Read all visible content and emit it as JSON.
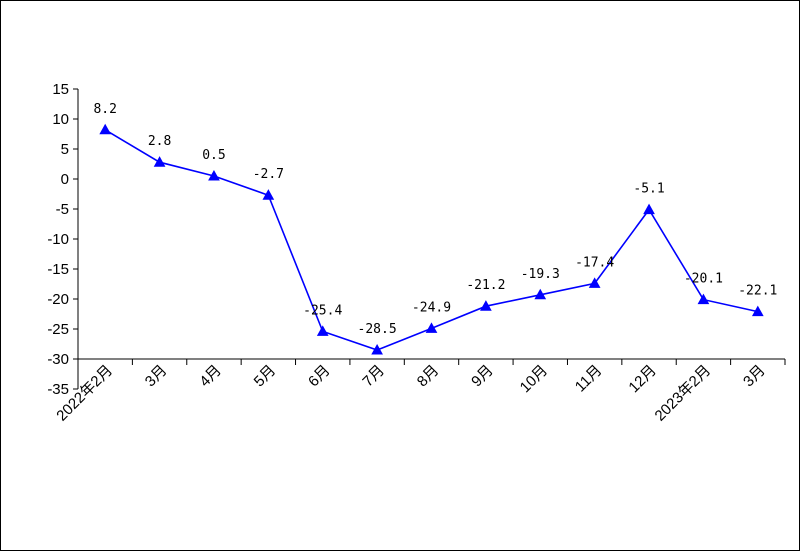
{
  "chart_data": {
    "type": "line",
    "categories": [
      "2022年2月",
      "3月",
      "4月",
      "5月",
      "6月",
      "7月",
      "8月",
      "9月",
      "10月",
      "11月",
      "12月",
      "2023年2月",
      "3月"
    ],
    "series": [
      {
        "values": [
          8.2,
          2.8,
          0.5,
          -2.7,
          -25.4,
          -28.5,
          -24.9,
          -21.2,
          -19.3,
          -17.4,
          -5.1,
          -20.1,
          -22.1
        ],
        "color": "#0000ff",
        "marker": "triangle"
      }
    ],
    "data_labels": [
      "8.2",
      "2.8",
      "0.5",
      "-2.7",
      "-25.4",
      "-28.5",
      "-24.9",
      "-21.2",
      "-19.3",
      "-17.4",
      "-5.1",
      "-20.1",
      "-22.1"
    ],
    "y_ticks": [
      "15",
      "10",
      "5",
      "0",
      "-5",
      "-10",
      "-15",
      "-20",
      "-25",
      "-30",
      "-35"
    ],
    "ylim": [
      -35,
      15
    ],
    "title": "",
    "xlabel": "",
    "ylabel": "",
    "grid": false,
    "legend": "none"
  }
}
